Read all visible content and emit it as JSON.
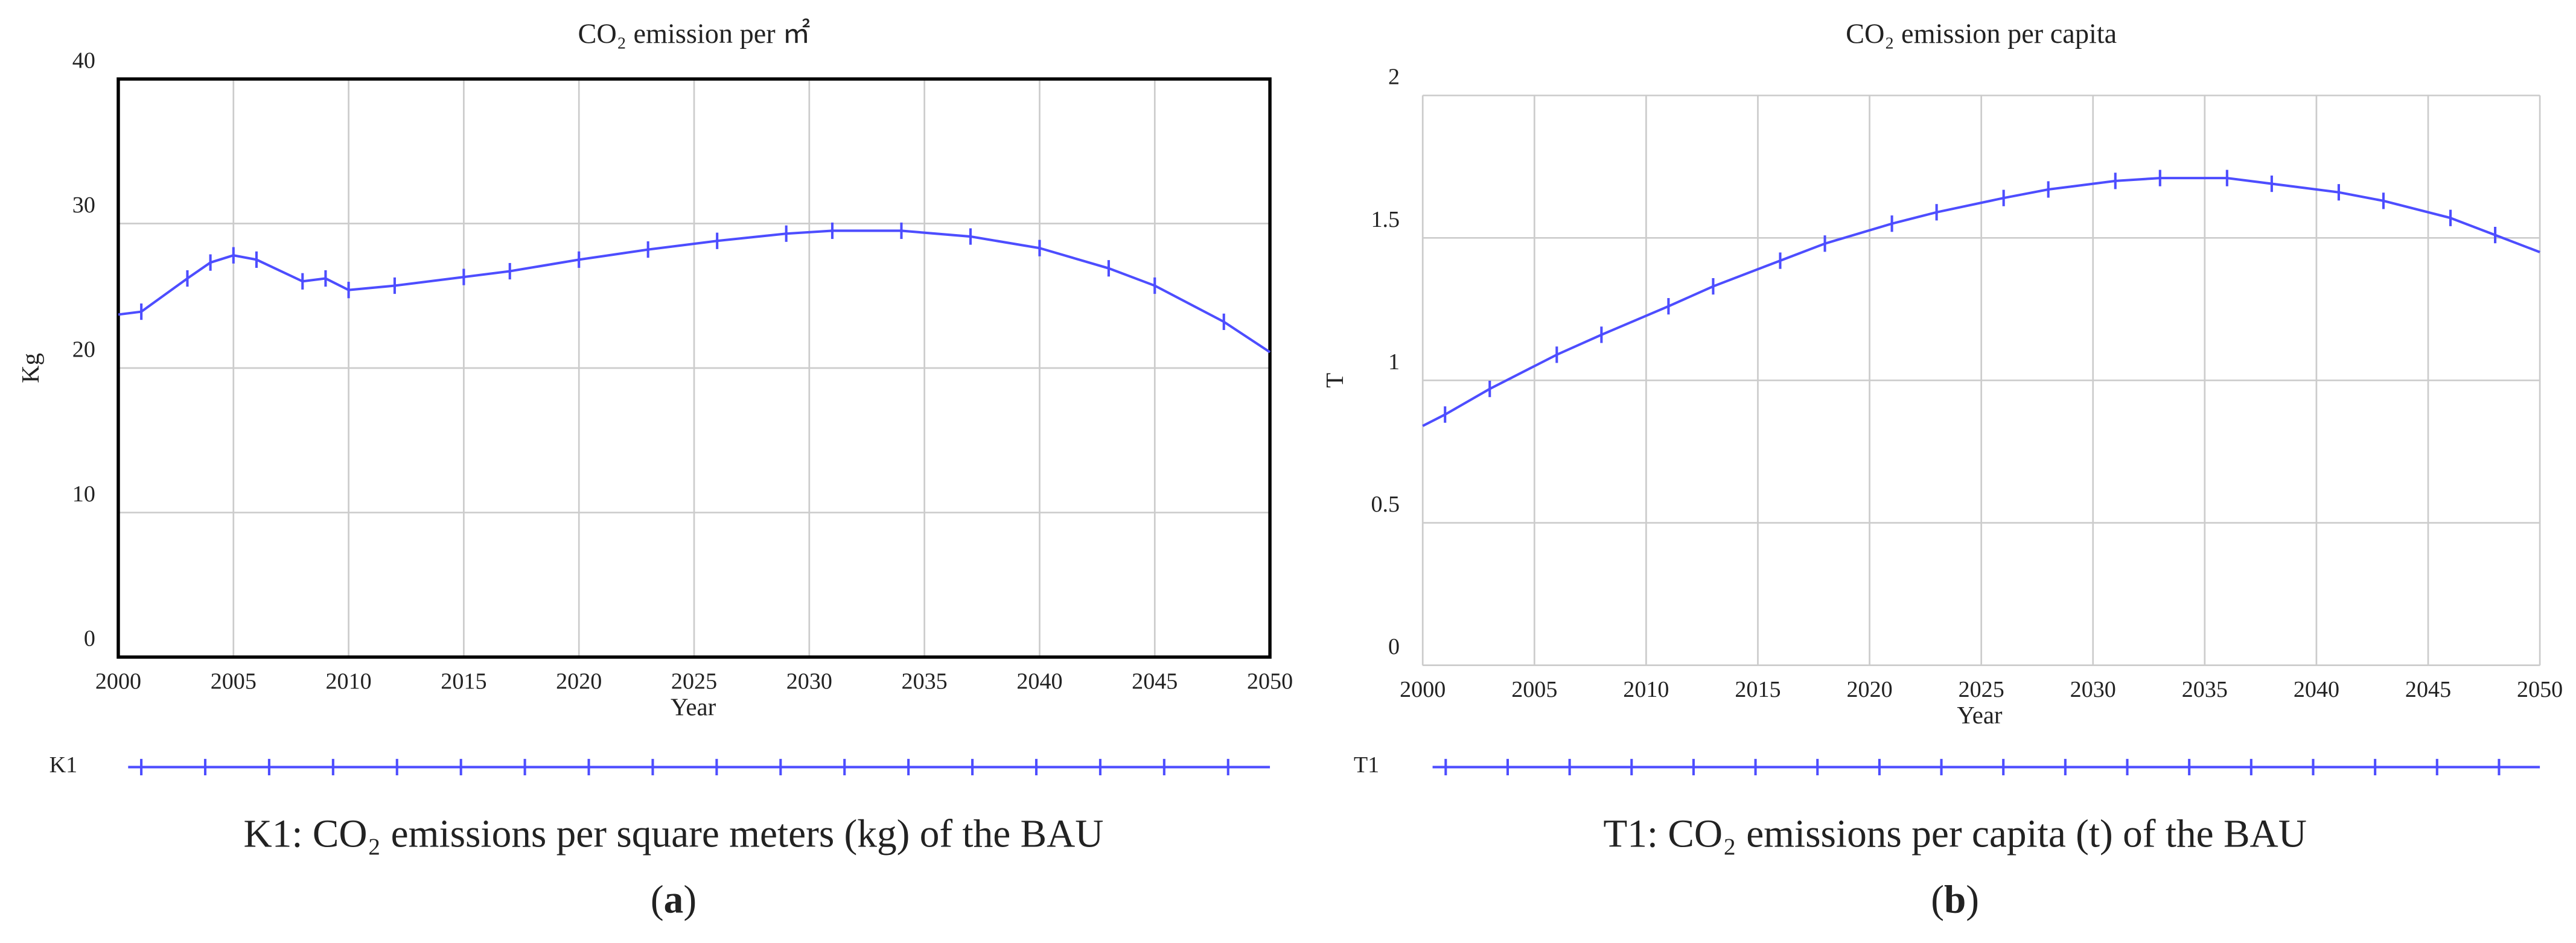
{
  "chart_data": [
    {
      "type": "line",
      "title": "CO₂ emission per ㎡",
      "x_label": "Year",
      "y_label": "Kg",
      "x": [
        2000,
        2001,
        2003,
        2004,
        2005,
        2006,
        2008,
        2009,
        2010,
        2012,
        2015,
        2017,
        2020,
        2023,
        2026,
        2029,
        2031,
        2034,
        2037,
        2040,
        2043,
        2045,
        2048,
        2050
      ],
      "series": [
        {
          "name": "K1",
          "color": "#4d4dff",
          "values": [
            23.7,
            23.9,
            26.2,
            27.3,
            27.8,
            27.5,
            26.0,
            26.2,
            25.4,
            25.7,
            26.3,
            26.7,
            27.5,
            28.2,
            28.8,
            29.3,
            29.5,
            29.5,
            29.1,
            28.3,
            26.9,
            25.7,
            23.2,
            21.1
          ]
        }
      ],
      "xlim": [
        2000,
        2050
      ],
      "xticks": [
        2000,
        2005,
        2010,
        2015,
        2020,
        2025,
        2030,
        2035,
        2040,
        2045,
        2050
      ],
      "ylim": [
        0,
        40
      ],
      "yticks": [
        0,
        10,
        20,
        30,
        40
      ],
      "grid": true,
      "frame": true,
      "caption": "K1: CO₂ emissions per square meters (kg) of the BAU",
      "panel_label": "a"
    },
    {
      "type": "line",
      "title": "CO₂ emission per capita",
      "x_label": "Year",
      "y_label": "T",
      "x": [
        2000,
        2001,
        2003,
        2006,
        2008,
        2011,
        2013,
        2016,
        2018,
        2021,
        2023,
        2026,
        2028,
        2031,
        2033,
        2036,
        2038,
        2041,
        2043,
        2046,
        2048,
        2050
      ],
      "series": [
        {
          "name": "T1",
          "color": "#4d4dff",
          "values": [
            0.84,
            0.88,
            0.97,
            1.09,
            1.16,
            1.26,
            1.33,
            1.42,
            1.48,
            1.55,
            1.59,
            1.64,
            1.67,
            1.7,
            1.71,
            1.71,
            1.69,
            1.66,
            1.63,
            1.57,
            1.51,
            1.45
          ]
        }
      ],
      "xlim": [
        2000,
        2050
      ],
      "xticks": [
        2000,
        2005,
        2010,
        2015,
        2020,
        2025,
        2030,
        2035,
        2040,
        2045,
        2050
      ],
      "ylim": [
        0,
        2
      ],
      "yticks": [
        0,
        0.5,
        1,
        1.5,
        2
      ],
      "grid": true,
      "frame": false,
      "caption": "T1: CO₂ emissions per capita (t) of the BAU",
      "panel_label": "b"
    }
  ]
}
